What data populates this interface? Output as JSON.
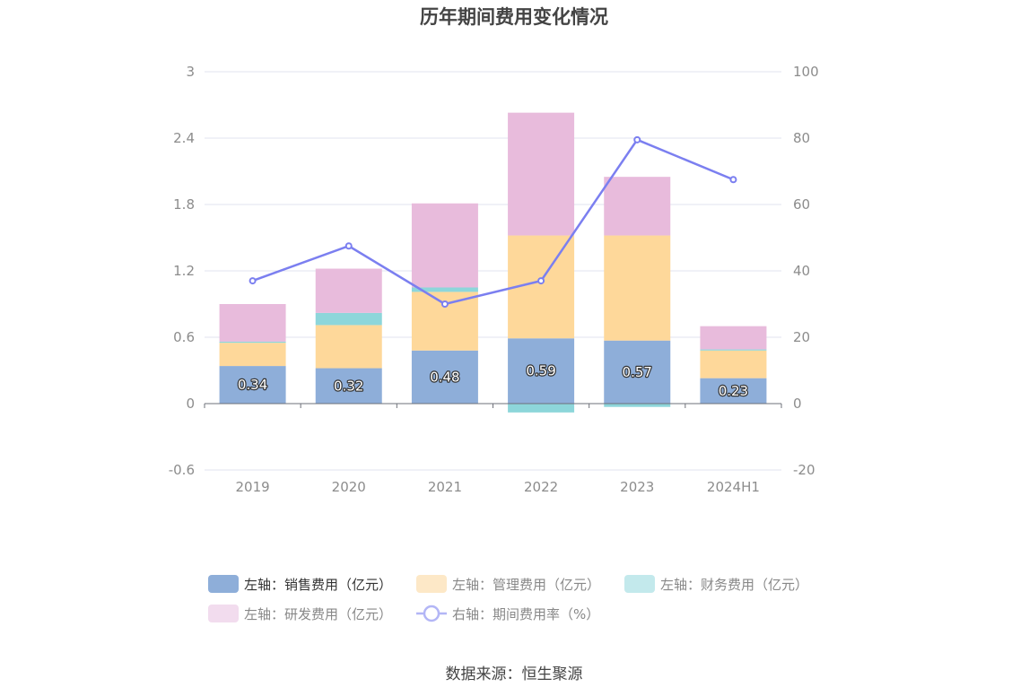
{
  "chart_data": {
    "type": "bar",
    "title": "历年期间费用变化情况",
    "categories": [
      "2019",
      "2020",
      "2021",
      "2022",
      "2023",
      "2024H1"
    ],
    "stacked": true,
    "left_axis": {
      "ylim": [
        -0.6,
        3
      ],
      "ticks": [
        "-0.6",
        "0",
        "0.6",
        "1.2",
        "1.8",
        "2.4",
        "3"
      ]
    },
    "right_axis": {
      "ylim": [
        -20,
        100
      ],
      "ticks": [
        "-20",
        "0",
        "20",
        "40",
        "60",
        "80",
        "100"
      ]
    },
    "series": [
      {
        "name": "左轴：销售费用（亿元）",
        "type": "bar",
        "axis": "left",
        "color": "#8eaed9",
        "values": [
          0.34,
          0.32,
          0.48,
          0.59,
          0.57,
          0.23
        ],
        "data_labels": [
          "0.34",
          "0.32",
          "0.48",
          "0.59",
          "0.57",
          "0.23"
        ]
      },
      {
        "name": "左轴：管理费用（亿元）",
        "type": "bar",
        "axis": "left",
        "color": "#fed89a",
        "values": [
          0.21,
          0.39,
          0.53,
          0.93,
          0.95,
          0.25
        ]
      },
      {
        "name": "左轴：财务费用（亿元）",
        "type": "bar",
        "axis": "left",
        "color": "#8dd6da",
        "values": [
          0.01,
          0.11,
          0.04,
          -0.08,
          -0.03,
          0.01
        ]
      },
      {
        "name": "左轴：研发费用（亿元）",
        "type": "bar",
        "axis": "left",
        "color": "#e8bbdc",
        "values": [
          0.34,
          0.4,
          0.76,
          1.11,
          0.53,
          0.21
        ]
      },
      {
        "name": "右轴：期间费用率（%）",
        "type": "line",
        "axis": "right",
        "color": "#7b7ff0",
        "values": [
          37,
          47.5,
          30,
          37,
          79.5,
          67.5
        ]
      }
    ],
    "legend": [
      {
        "label": "左轴：销售费用（亿元）",
        "color": "#8eaed9",
        "kind": "rect",
        "dim": false
      },
      {
        "label": "左轴：管理费用（亿元）",
        "color": "#fde8c7",
        "kind": "rect",
        "dim": true
      },
      {
        "label": "左轴：财务费用（亿元）",
        "color": "#c3e9ec",
        "kind": "rect",
        "dim": true
      },
      {
        "label": "左轴：研发费用（亿元）",
        "color": "#f2dcee",
        "kind": "rect",
        "dim": true
      },
      {
        "label": "右轴：期间费用率（%）",
        "color": "#b3b6f6",
        "kind": "line",
        "dim": true
      }
    ],
    "legend_position": "bottom",
    "grid": true
  },
  "source": "数据来源：恒生聚源"
}
